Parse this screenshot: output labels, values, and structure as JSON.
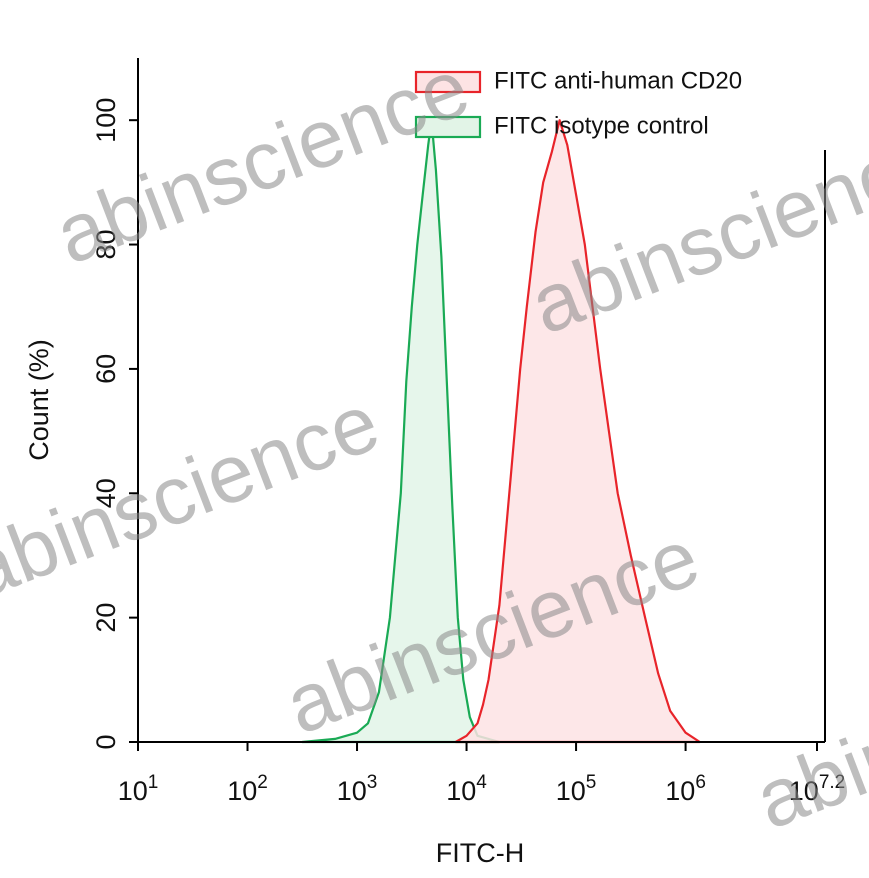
{
  "chart_data": {
    "type": "area",
    "xlabel": "FITC-H",
    "ylabel": "Count  (%)",
    "watermark": "abinscience",
    "xscale": "log",
    "xlim": [
      10,
      15848931.92
    ],
    "ylim": [
      0,
      110
    ],
    "xticks": [
      {
        "value": 10,
        "label": "10",
        "superscript": "1"
      },
      {
        "value": 100,
        "label": "10",
        "superscript": "2"
      },
      {
        "value": 1000,
        "label": "10",
        "superscript": "3"
      },
      {
        "value": 10000,
        "label": "10",
        "superscript": "4"
      },
      {
        "value": 100000,
        "label": "10",
        "superscript": "5"
      },
      {
        "value": 1000000,
        "label": "10",
        "superscript": "6"
      },
      {
        "value": 15848931.92,
        "label": "10",
        "superscript": "7.2"
      }
    ],
    "yticks": [
      0,
      20,
      40,
      60,
      80,
      100
    ],
    "legend": "upper right",
    "series": [
      {
        "name": "FITC anti-human CD20",
        "color": "#e8242a",
        "fill": "#fde3e4",
        "x": [
          7943,
          10000,
          12589,
          14125,
          15849,
          19953,
          25119,
          30903,
          35481,
          42658,
          50119,
          60256,
          70795,
          83176,
          100000,
          120226,
          141254,
          165959,
          199526,
          239883,
          316228,
          426580,
          562341,
          724436,
          1000000,
          1348963
        ],
        "values": [
          0,
          1,
          3,
          6,
          10,
          22,
          42,
          60,
          70,
          82,
          90,
          95,
          100,
          96,
          88,
          80,
          70,
          60,
          50,
          40,
          30,
          20,
          11,
          5,
          1.5,
          0
        ]
      },
      {
        "name": "FITC isotype control",
        "color": "#1aaa55",
        "fill": "#e2f4e7",
        "x": [
          316,
          631,
          1000,
          1259,
          1585,
          1995,
          2512,
          2818,
          3162,
          3548,
          3981,
          4467,
          4786,
          5248,
          5888,
          6607,
          7413,
          8318,
          9333,
          10715,
          12589,
          19953
        ],
        "values": [
          0,
          0.5,
          1.5,
          3,
          8,
          20,
          40,
          58,
          70,
          80,
          88,
          96,
          100,
          92,
          78,
          58,
          38,
          20,
          10,
          4,
          1,
          0
        ]
      }
    ]
  }
}
